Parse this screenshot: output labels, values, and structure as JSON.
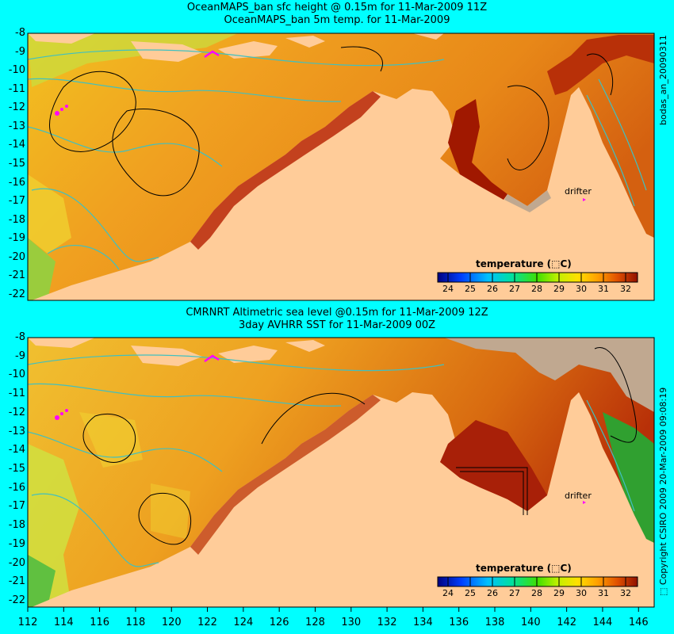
{
  "top_panel": {
    "title_line1": "OceanMAPS_ban sfc height @ 0.15m for 11-Mar-2009 11Z",
    "title_line2": "OceanMAPS_ban 5m temp. for 11-Mar-2009",
    "side_label": "bodas_an_20090311",
    "colorbar_title": "temperature (⬚C)",
    "drifter_label": "drifter"
  },
  "bottom_panel": {
    "title_line1": "CMRNRT Altimetric sea level  @0.15m  for 11-Mar-2009 12Z",
    "title_line2": "3day AVHRR SST for 11-Mar-2009 00Z",
    "side_label": "⬚ Copyright CSIRO 2009  20-Mar-2009 09:08:19",
    "colorbar_title": "temperature (⬚C)",
    "drifter_label": "drifter"
  },
  "colorbar_ticks": [
    "24",
    "25",
    "26",
    "27",
    "28",
    "29",
    "30",
    "31",
    "32"
  ],
  "y_ticks": [
    "-8",
    "-9",
    "-10",
    "-11",
    "-12",
    "-13",
    "-14",
    "-15",
    "-16",
    "-17",
    "-18",
    "-19",
    "-20",
    "-21",
    "-22"
  ],
  "x_ticks": [
    "112",
    "114",
    "116",
    "118",
    "120",
    "122",
    "124",
    "126",
    "128",
    "130",
    "132",
    "134",
    "136",
    "138",
    "140",
    "142",
    "144",
    "146"
  ],
  "colors": {
    "background": "#00ffff",
    "land": "#ffcc99",
    "warm_sea": "#e08a1a",
    "hot_sea": "#a01800",
    "cool_sea": "#e8e020",
    "contour_cyan": "#40c0c0",
    "drifter": "#ff00ff"
  }
}
